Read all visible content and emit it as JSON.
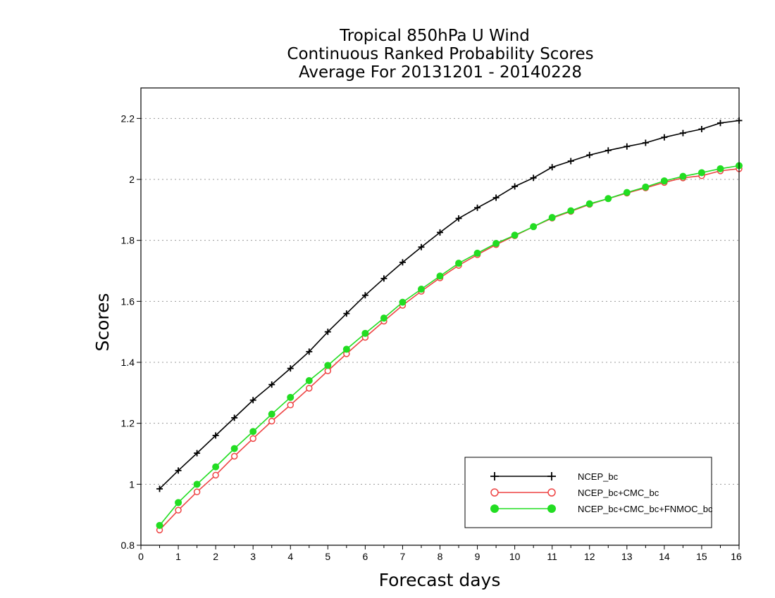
{
  "chart_data": {
    "type": "line",
    "title_lines": [
      "Tropical 850hPa U Wind",
      "Continuous Ranked Probability Scores",
      "Average For 20131201 - 20140228"
    ],
    "xlabel": "Forecast days",
    "ylabel": "Scores",
    "xlim": [
      0,
      16
    ],
    "ylim": [
      0.8,
      2.3
    ],
    "xticks": [
      0,
      1,
      2,
      3,
      4,
      5,
      6,
      7,
      8,
      9,
      10,
      11,
      12,
      13,
      14,
      15,
      16
    ],
    "yticks": [
      0.8,
      1,
      1.2,
      1.4,
      1.6,
      1.8,
      2,
      2.2
    ],
    "ytick_labels": [
      "0.8",
      "1",
      "1.2",
      "1.4",
      "1.6",
      "1.8",
      "2",
      "2.2"
    ],
    "grid": "horizontal dotted",
    "legend_position": "bottom-right",
    "x": [
      0.5,
      1,
      1.5,
      2,
      2.5,
      3,
      3.5,
      4,
      4.5,
      5,
      5.5,
      6,
      6.5,
      7,
      7.5,
      8,
      8.5,
      9,
      9.5,
      10,
      10.5,
      11,
      11.5,
      12,
      12.5,
      13,
      13.5,
      14,
      14.5,
      15,
      15.5,
      16
    ],
    "series": [
      {
        "name": "NCEP_bc",
        "color": "#000000",
        "marker": "plus",
        "values": [
          0.985,
          1.045,
          1.102,
          1.16,
          1.218,
          1.276,
          1.327,
          1.38,
          1.435,
          1.5,
          1.56,
          1.62,
          1.675,
          1.728,
          1.778,
          1.826,
          1.872,
          1.907,
          1.94,
          1.977,
          2.005,
          2.04,
          2.06,
          2.08,
          2.095,
          2.108,
          2.12,
          2.138,
          2.152,
          2.165,
          2.185,
          2.193
        ]
      },
      {
        "name": "NCEP_bc+CMC_bc",
        "color": "#ee4444",
        "marker": "open-circle",
        "values": [
          0.85,
          0.915,
          0.975,
          1.03,
          1.092,
          1.15,
          1.207,
          1.26,
          1.315,
          1.372,
          1.428,
          1.482,
          1.535,
          1.587,
          1.633,
          1.677,
          1.718,
          1.753,
          1.786,
          1.815,
          1.845,
          1.873,
          1.895,
          1.918,
          1.937,
          1.955,
          1.972,
          1.99,
          2.005,
          2.012,
          2.028,
          2.035
        ]
      },
      {
        "name": "NCEP_bc+CMC_bc+FNMOC_bc",
        "color": "#22dd22",
        "marker": "filled-circle",
        "values": [
          0.865,
          0.94,
          1.0,
          1.057,
          1.117,
          1.173,
          1.23,
          1.285,
          1.34,
          1.39,
          1.443,
          1.495,
          1.545,
          1.597,
          1.64,
          1.683,
          1.725,
          1.758,
          1.79,
          1.817,
          1.845,
          1.875,
          1.897,
          1.92,
          1.937,
          1.957,
          1.975,
          1.995,
          2.01,
          2.022,
          2.035,
          2.045
        ]
      }
    ]
  }
}
